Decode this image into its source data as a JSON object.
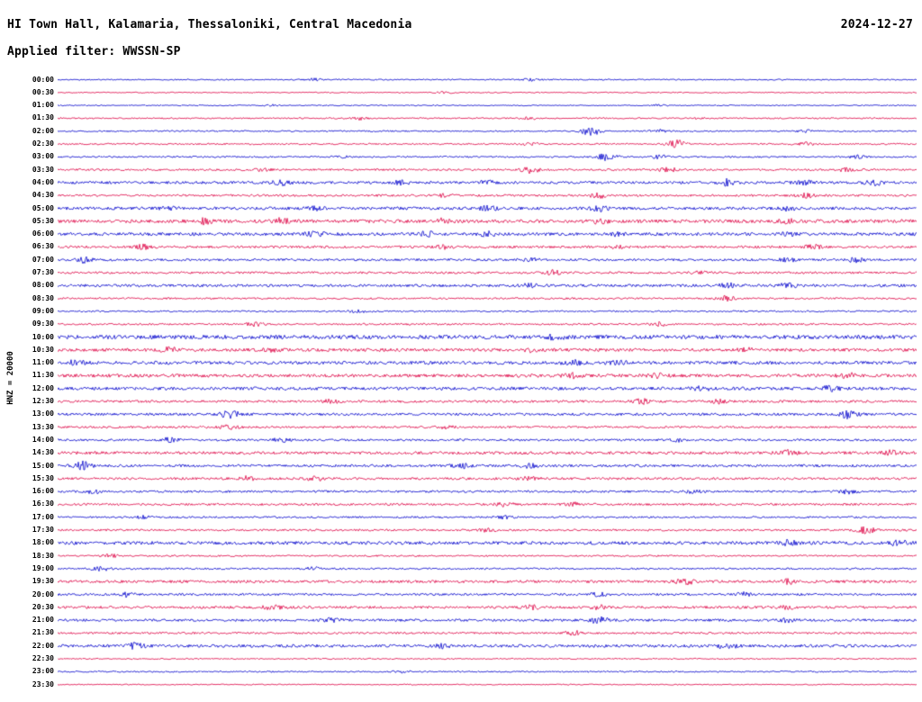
{
  "header": {
    "station_title": "HI Town Hall, Kalamaria, Thessaloniki, Central Macedonia",
    "date": "2024-12-27",
    "filter_label": "Applied filter: WWSSN-SP"
  },
  "left_axis": {
    "label": "HNZ = 20000",
    "channel": "HNZ",
    "scale": "20000"
  },
  "chart_data": {
    "type": "seismogram-helicorder",
    "title": "HI Town Hall, Kalamaria, Thessaloniki, Central Macedonia",
    "subtitle": "Applied filter: WWSSN-SP",
    "date": "2024-12-27",
    "row_interval_minutes": 30,
    "time_range": [
      "00:00",
      "23:30"
    ],
    "legend_position": "none",
    "grid": false,
    "colors": {
      "blue": "#0000cc",
      "red": "#dd0044"
    },
    "rows": [
      {
        "label": "00:00",
        "color": "blue",
        "base": 0.7,
        "bursts": [
          [
            0.3,
            1.5
          ],
          [
            0.55,
            1.2
          ]
        ]
      },
      {
        "label": "00:30",
        "color": "red",
        "base": 0.6,
        "bursts": [
          [
            0.45,
            1.0
          ]
        ]
      },
      {
        "label": "01:00",
        "color": "blue",
        "base": 0.6,
        "bursts": [
          [
            0.25,
            0.8
          ],
          [
            0.7,
            0.8
          ]
        ]
      },
      {
        "label": "01:30",
        "color": "red",
        "base": 0.8,
        "bursts": [
          [
            0.35,
            1.5
          ],
          [
            0.55,
            1.2
          ],
          [
            0.75,
            1.0
          ]
        ]
      },
      {
        "label": "02:00",
        "color": "blue",
        "base": 0.8,
        "bursts": [
          [
            0.62,
            5.5
          ],
          [
            0.7,
            1.5
          ],
          [
            0.87,
            1.5
          ]
        ]
      },
      {
        "label": "02:30",
        "color": "red",
        "base": 0.9,
        "bursts": [
          [
            0.55,
            1.2
          ],
          [
            0.72,
            4.5
          ],
          [
            0.87,
            2.0
          ]
        ]
      },
      {
        "label": "03:00",
        "color": "blue",
        "base": 0.9,
        "bursts": [
          [
            0.33,
            1.2
          ],
          [
            0.64,
            4.5
          ],
          [
            0.7,
            2.0
          ],
          [
            0.93,
            1.5
          ]
        ]
      },
      {
        "label": "03:30",
        "color": "red",
        "base": 1.1,
        "bursts": [
          [
            0.24,
            1.5
          ],
          [
            0.55,
            3.5
          ],
          [
            0.71,
            2.5
          ],
          [
            0.92,
            2.5
          ]
        ]
      },
      {
        "label": "04:00",
        "color": "blue",
        "base": 1.5,
        "bursts": [
          [
            0.26,
            3.0
          ],
          [
            0.4,
            1.8
          ],
          [
            0.5,
            1.8
          ],
          [
            0.78,
            3.5
          ],
          [
            0.87,
            2.5
          ],
          [
            0.95,
            2.5
          ]
        ]
      },
      {
        "label": "04:30",
        "color": "red",
        "base": 1.2,
        "bursts": [
          [
            0.45,
            1.5
          ],
          [
            0.63,
            2.5
          ],
          [
            0.87,
            2.5
          ]
        ]
      },
      {
        "label": "05:00",
        "color": "blue",
        "base": 1.6,
        "bursts": [
          [
            0.13,
            1.8
          ],
          [
            0.3,
            2.0
          ],
          [
            0.5,
            2.5
          ],
          [
            0.63,
            3.0
          ],
          [
            0.85,
            2.0
          ]
        ]
      },
      {
        "label": "05:30",
        "color": "red",
        "base": 1.9,
        "bursts": [
          [
            0.17,
            2.8
          ],
          [
            0.26,
            2.8
          ],
          [
            0.45,
            2.5
          ],
          [
            0.63,
            2.0
          ],
          [
            0.85,
            1.8
          ]
        ]
      },
      {
        "label": "06:00",
        "color": "blue",
        "base": 1.7,
        "bursts": [
          [
            0.3,
            2.8
          ],
          [
            0.43,
            2.2
          ],
          [
            0.5,
            2.2
          ],
          [
            0.65,
            1.8
          ],
          [
            0.85,
            1.8
          ]
        ]
      },
      {
        "label": "06:30",
        "color": "red",
        "base": 1.3,
        "bursts": [
          [
            0.1,
            2.2
          ],
          [
            0.45,
            1.8
          ],
          [
            0.65,
            1.8
          ],
          [
            0.88,
            2.5
          ]
        ]
      },
      {
        "label": "07:00",
        "color": "blue",
        "base": 1.3,
        "bursts": [
          [
            0.03,
            2.8
          ],
          [
            0.55,
            1.8
          ],
          [
            0.85,
            1.8
          ],
          [
            0.93,
            2.2
          ]
        ]
      },
      {
        "label": "07:30",
        "color": "red",
        "base": 1.2,
        "bursts": [
          [
            0.58,
            3.0
          ],
          [
            0.75,
            1.5
          ]
        ]
      },
      {
        "label": "08:00",
        "color": "blue",
        "base": 1.5,
        "bursts": [
          [
            0.55,
            1.8
          ],
          [
            0.78,
            2.2
          ],
          [
            0.85,
            2.2
          ]
        ]
      },
      {
        "label": "08:30",
        "color": "red",
        "base": 1.0,
        "bursts": [
          [
            0.78,
            2.8
          ]
        ]
      },
      {
        "label": "09:00",
        "color": "blue",
        "base": 0.9,
        "bursts": [
          [
            0.35,
            1.2
          ]
        ]
      },
      {
        "label": "09:30",
        "color": "red",
        "base": 1.0,
        "bursts": [
          [
            0.23,
            2.2
          ],
          [
            0.7,
            2.5
          ]
        ]
      },
      {
        "label": "10:00",
        "color": "blue",
        "base": 2.2,
        "bursts": [
          [
            0.58,
            2.0
          ]
        ]
      },
      {
        "label": "10:30",
        "color": "red",
        "base": 1.7,
        "bursts": [
          [
            0.13,
            2.2
          ],
          [
            0.25,
            2.0
          ],
          [
            0.55,
            2.0
          ],
          [
            0.8,
            1.8
          ]
        ]
      },
      {
        "label": "11:00",
        "color": "blue",
        "base": 1.8,
        "bursts": [
          [
            0.02,
            2.0
          ],
          [
            0.6,
            3.2
          ],
          [
            0.65,
            2.5
          ]
        ]
      },
      {
        "label": "11:30",
        "color": "red",
        "base": 1.8,
        "bursts": [
          [
            0.6,
            2.2
          ],
          [
            0.7,
            2.2
          ],
          [
            0.92,
            2.5
          ]
        ]
      },
      {
        "label": "12:00",
        "color": "blue",
        "base": 1.7,
        "bursts": [
          [
            0.75,
            2.2
          ],
          [
            0.9,
            2.5
          ]
        ]
      },
      {
        "label": "12:30",
        "color": "red",
        "base": 1.3,
        "bursts": [
          [
            0.32,
            2.0
          ],
          [
            0.68,
            2.6
          ],
          [
            0.77,
            2.0
          ]
        ]
      },
      {
        "label": "13:00",
        "color": "blue",
        "base": 1.4,
        "bursts": [
          [
            0.2,
            4.5
          ],
          [
            0.92,
            4.0
          ]
        ]
      },
      {
        "label": "13:30",
        "color": "red",
        "base": 1.2,
        "bursts": [
          [
            0.2,
            2.0
          ],
          [
            0.45,
            1.8
          ]
        ]
      },
      {
        "label": "14:00",
        "color": "blue",
        "base": 1.2,
        "bursts": [
          [
            0.13,
            2.5
          ],
          [
            0.26,
            2.5
          ],
          [
            0.72,
            2.0
          ]
        ]
      },
      {
        "label": "14:30",
        "color": "red",
        "base": 1.6,
        "bursts": [
          [
            0.85,
            2.5
          ],
          [
            0.97,
            2.2
          ]
        ]
      },
      {
        "label": "15:00",
        "color": "blue",
        "base": 1.4,
        "bursts": [
          [
            0.03,
            4.5
          ],
          [
            0.47,
            2.2
          ],
          [
            0.55,
            2.0
          ]
        ]
      },
      {
        "label": "15:30",
        "color": "red",
        "base": 1.3,
        "bursts": [
          [
            0.22,
            2.2
          ],
          [
            0.3,
            2.0
          ],
          [
            0.55,
            1.8
          ]
        ]
      },
      {
        "label": "16:00",
        "color": "blue",
        "base": 1.2,
        "bursts": [
          [
            0.04,
            2.0
          ],
          [
            0.74,
            2.5
          ],
          [
            0.92,
            2.2
          ]
        ]
      },
      {
        "label": "16:30",
        "color": "red",
        "base": 1.2,
        "bursts": [
          [
            0.52,
            2.2
          ],
          [
            0.6,
            1.8
          ]
        ]
      },
      {
        "label": "17:00",
        "color": "blue",
        "base": 1.0,
        "bursts": [
          [
            0.1,
            1.5
          ],
          [
            0.52,
            1.8
          ]
        ]
      },
      {
        "label": "17:30",
        "color": "red",
        "base": 1.1,
        "bursts": [
          [
            0.5,
            1.8
          ],
          [
            0.94,
            4.5
          ]
        ]
      },
      {
        "label": "18:00",
        "color": "blue",
        "base": 1.8,
        "bursts": [
          [
            0.85,
            2.5
          ],
          [
            0.98,
            2.5
          ]
        ]
      },
      {
        "label": "18:30",
        "color": "red",
        "base": 0.9,
        "bursts": [
          [
            0.06,
            1.8
          ]
        ]
      },
      {
        "label": "19:00",
        "color": "blue",
        "base": 1.0,
        "bursts": [
          [
            0.05,
            2.5
          ],
          [
            0.3,
            1.8
          ]
        ]
      },
      {
        "label": "19:30",
        "color": "red",
        "base": 1.5,
        "bursts": [
          [
            0.73,
            3.2
          ],
          [
            0.85,
            2.2
          ]
        ]
      },
      {
        "label": "20:00",
        "color": "blue",
        "base": 1.2,
        "bursts": [
          [
            0.08,
            2.8
          ],
          [
            0.63,
            2.0
          ],
          [
            0.8,
            2.0
          ]
        ]
      },
      {
        "label": "20:30",
        "color": "red",
        "base": 1.4,
        "bursts": [
          [
            0.25,
            2.2
          ],
          [
            0.55,
            2.0
          ],
          [
            0.63,
            2.2
          ],
          [
            0.85,
            1.8
          ]
        ]
      },
      {
        "label": "21:00",
        "color": "blue",
        "base": 1.4,
        "bursts": [
          [
            0.32,
            2.0
          ],
          [
            0.63,
            3.2
          ],
          [
            0.85,
            2.0
          ]
        ]
      },
      {
        "label": "21:30",
        "color": "red",
        "base": 1.1,
        "bursts": [
          [
            0.6,
            2.5
          ]
        ]
      },
      {
        "label": "22:00",
        "color": "blue",
        "base": 1.6,
        "bursts": [
          [
            0.09,
            3.2
          ],
          [
            0.45,
            2.0
          ],
          [
            0.78,
            3.0
          ]
        ]
      },
      {
        "label": "22:30",
        "color": "red",
        "base": 0.7,
        "bursts": []
      },
      {
        "label": "23:00",
        "color": "blue",
        "base": 0.8,
        "bursts": [
          [
            0.4,
            1.0
          ]
        ]
      },
      {
        "label": "23:30",
        "color": "red",
        "base": 0.6,
        "bursts": []
      }
    ]
  }
}
